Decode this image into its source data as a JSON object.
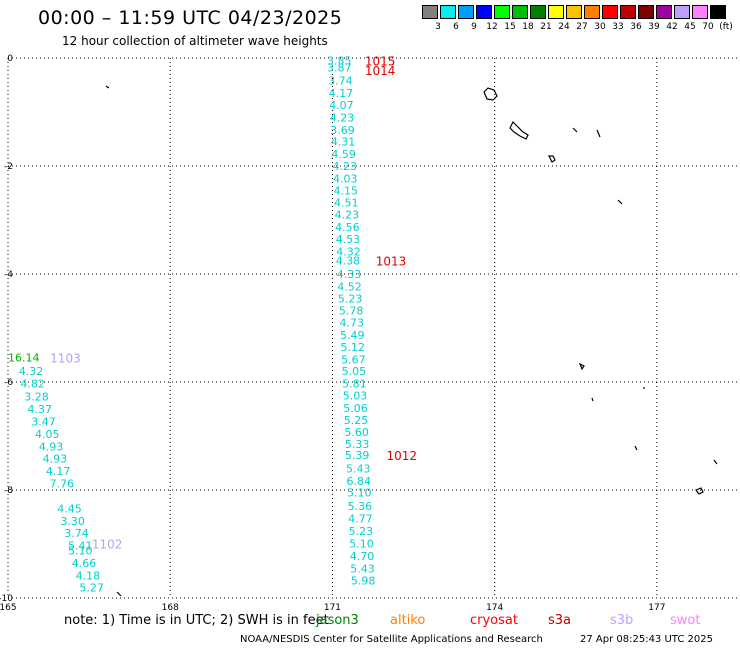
{
  "title": "00:00 – 11:59 UTC 04/23/2025",
  "subtitle": "12 hour collection of altimeter wave heights",
  "legend": {
    "unit": "(ft)",
    "bins": [
      {
        "label": "3",
        "color": "#808080"
      },
      {
        "label": "6",
        "color": "#00f0f0"
      },
      {
        "label": "9",
        "color": "#00a0ff"
      },
      {
        "label": "12",
        "color": "#0000ff"
      },
      {
        "label": "15",
        "color": "#00ff00"
      },
      {
        "label": "18",
        "color": "#00c000"
      },
      {
        "label": "21",
        "color": "#008000"
      },
      {
        "label": "24",
        "color": "#ffff00"
      },
      {
        "label": "27",
        "color": "#ffc000"
      },
      {
        "label": "30",
        "color": "#ff8000"
      },
      {
        "label": "33",
        "color": "#ff0000"
      },
      {
        "label": "36",
        "color": "#c00000"
      },
      {
        "label": "39",
        "color": "#800000"
      },
      {
        "label": "42",
        "color": "#a000a0"
      },
      {
        "label": "45",
        "color": "#c0a0ff"
      },
      {
        "label": "70",
        "color": "#ff80ff"
      },
      {
        "label": "",
        "color": "#000000"
      }
    ]
  },
  "note": "note: 1) Time is in UTC; 2) SWH is in feet",
  "satellites": [
    {
      "name": "jason3",
      "color": "#008000"
    },
    {
      "name": "altiko",
      "color": "#ff8000"
    },
    {
      "name": "cryosat",
      "color": "#ff0000"
    },
    {
      "name": "s3a",
      "color": "#c00000"
    },
    {
      "name": "s3b",
      "color": "#c0a0ff"
    },
    {
      "name": "swot",
      "color": "#ff80ff"
    }
  ],
  "credit": "NOAA/NESDIS Center for Satellite Applications and Research",
  "timestamp": "27 Apr 08:25:43 UTC 2025",
  "chart_data": {
    "type": "scatter",
    "grid": true,
    "xlim": [
      165,
      178.5
    ],
    "ylim": [
      -10,
      0
    ],
    "x_ticks": [
      "165",
      "168",
      "171",
      "174",
      "177"
    ],
    "y_ticks": [
      "0",
      "-2",
      "-4",
      "-6",
      "-8",
      "-10"
    ],
    "track_labels": [
      {
        "text": "1015",
        "x": 171.6,
        "y": -0.05,
        "color": "#e00000"
      },
      {
        "text": "1014",
        "x": 171.6,
        "y": -0.22,
        "color": "#e00000"
      },
      {
        "text": "1013",
        "x": 171.8,
        "y": -3.75,
        "color": "#e00000"
      },
      {
        "text": "1012",
        "x": 172.0,
        "y": -7.35,
        "color": "#e00000"
      },
      {
        "text": "1103",
        "x": 165.78,
        "y": -5.55,
        "color": "#b8a0f0"
      },
      {
        "text": "1102",
        "x": 166.55,
        "y": -8.99,
        "color": "#b8a0f0"
      }
    ],
    "series": [
      {
        "color": "#00d0d0",
        "points": [
          {
            "x": 170.9,
            "y": -0.05,
            "v": "3.85"
          },
          {
            "x": 170.9,
            "y": -0.18,
            "v": "3.87"
          },
          {
            "x": 170.92,
            "y": -0.42,
            "v": "3.74"
          },
          {
            "x": 170.93,
            "y": -0.65,
            "v": "4.17"
          },
          {
            "x": 170.94,
            "y": -0.87,
            "v": "4.07"
          },
          {
            "x": 170.95,
            "y": -1.1,
            "v": "4.23"
          },
          {
            "x": 170.96,
            "y": -1.33,
            "v": "3.69"
          },
          {
            "x": 170.97,
            "y": -1.55,
            "v": "4.31"
          },
          {
            "x": 170.98,
            "y": -1.78,
            "v": "4.59"
          },
          {
            "x": 171.0,
            "y": -2.0,
            "v": "4.23"
          },
          {
            "x": 171.01,
            "y": -2.23,
            "v": "4.03"
          },
          {
            "x": 171.02,
            "y": -2.45,
            "v": "4.15"
          },
          {
            "x": 171.03,
            "y": -2.68,
            "v": "4.51"
          },
          {
            "x": 171.04,
            "y": -2.9,
            "v": "4.23"
          },
          {
            "x": 171.05,
            "y": -3.13,
            "v": "4.56"
          },
          {
            "x": 171.06,
            "y": -3.35,
            "v": "4.53"
          },
          {
            "x": 171.07,
            "y": -3.58,
            "v": "4.32"
          },
          {
            "x": 171.06,
            "y": -3.75,
            "v": "4.38"
          },
          {
            "x": 171.08,
            "y": -4.0,
            "v": "4.33"
          },
          {
            "x": 171.09,
            "y": -4.23,
            "v": "4.52"
          },
          {
            "x": 171.1,
            "y": -4.45,
            "v": "5.23"
          },
          {
            "x": 171.12,
            "y": -4.68,
            "v": "5.78"
          },
          {
            "x": 171.13,
            "y": -4.9,
            "v": "4.73"
          },
          {
            "x": 171.14,
            "y": -5.13,
            "v": "5.49"
          },
          {
            "x": 171.15,
            "y": -5.35,
            "v": "5.12"
          },
          {
            "x": 171.16,
            "y": -5.58,
            "v": "5.67"
          },
          {
            "x": 171.17,
            "y": -5.8,
            "v": "5.05"
          },
          {
            "x": 171.18,
            "y": -6.03,
            "v": "5.81"
          },
          {
            "x": 171.19,
            "y": -6.25,
            "v": "5.03"
          },
          {
            "x": 171.2,
            "y": -6.48,
            "v": "5.06"
          },
          {
            "x": 171.21,
            "y": -6.7,
            "v": "5.25"
          },
          {
            "x": 171.22,
            "y": -6.93,
            "v": "5.60"
          },
          {
            "x": 171.23,
            "y": -7.15,
            "v": "5.33"
          },
          {
            "x": 171.23,
            "y": -7.35,
            "v": "5.39"
          },
          {
            "x": 171.25,
            "y": -7.6,
            "v": "5.43"
          },
          {
            "x": 171.26,
            "y": -7.83,
            "v": "6.84"
          },
          {
            "x": 171.27,
            "y": -8.05,
            "v": "5.10"
          },
          {
            "x": 171.28,
            "y": -8.3,
            "v": "5.36"
          },
          {
            "x": 171.29,
            "y": -8.53,
            "v": "4.77"
          },
          {
            "x": 171.3,
            "y": -8.76,
            "v": "5.23"
          },
          {
            "x": 171.31,
            "y": -8.99,
            "v": "5.10"
          },
          {
            "x": 171.32,
            "y": -9.22,
            "v": "4.70"
          },
          {
            "x": 171.33,
            "y": -9.45,
            "v": "5.43"
          },
          {
            "x": 171.34,
            "y": -9.68,
            "v": "5.98"
          }
        ]
      },
      {
        "color": "#00d0d0",
        "points": [
          {
            "x": 165.2,
            "y": -5.8,
            "v": "4.32"
          },
          {
            "x": 165.23,
            "y": -6.03,
            "v": "4.82"
          },
          {
            "x": 165.3,
            "y": -6.27,
            "v": "3.28"
          },
          {
            "x": 165.36,
            "y": -6.5,
            "v": "4.37"
          },
          {
            "x": 165.43,
            "y": -6.73,
            "v": "3.47"
          },
          {
            "x": 165.5,
            "y": -6.96,
            "v": "4.05"
          },
          {
            "x": 165.57,
            "y": -7.19,
            "v": "4.93"
          },
          {
            "x": 165.64,
            "y": -7.42,
            "v": "4.93"
          },
          {
            "x": 165.7,
            "y": -7.65,
            "v": "4.17"
          },
          {
            "x": 165.77,
            "y": -7.88,
            "v": "7.76"
          },
          {
            "x": 165.91,
            "y": -8.34,
            "v": "4.45"
          },
          {
            "x": 165.97,
            "y": -8.57,
            "v": "3.30"
          },
          {
            "x": 166.04,
            "y": -8.8,
            "v": "3.74"
          },
          {
            "x": 166.11,
            "y": -9.03,
            "v": "5.41"
          },
          {
            "x": 166.11,
            "y": -9.12,
            "v": "5.10"
          },
          {
            "x": 166.18,
            "y": -9.35,
            "v": "4.66"
          },
          {
            "x": 166.25,
            "y": -9.58,
            "v": "4.18"
          },
          {
            "x": 166.32,
            "y": -9.81,
            "v": "5.27"
          }
        ]
      },
      {
        "color": "#00b000",
        "points": [
          {
            "x": 165.0,
            "y": -5.55,
            "v": "16.14"
          }
        ]
      }
    ]
  }
}
